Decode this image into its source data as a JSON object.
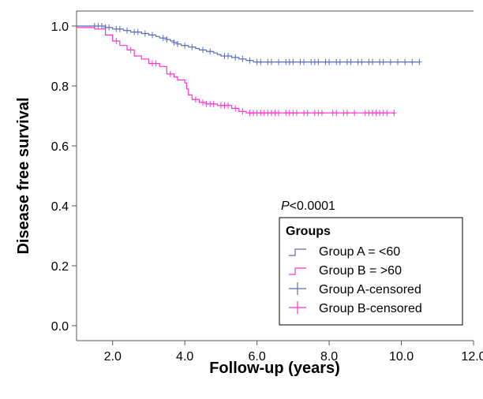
{
  "chart_data": {
    "type": "line",
    "subtype": "kaplan-meier",
    "xlabel": "Follow-up (years)",
    "ylabel": "Disease free survival",
    "xlim": [
      1.0,
      12.0
    ],
    "ylim": [
      -0.05,
      1.05
    ],
    "x_ticks": [
      "2.0",
      "4.0",
      "6.0",
      "8.0",
      "10.0",
      "12.0"
    ],
    "y_ticks": [
      "0.0",
      "0.2",
      "0.4",
      "0.6",
      "0.8",
      "1.0"
    ],
    "annotation": {
      "italic": "P",
      "text": "<0.0001"
    },
    "legend": {
      "title": "Groups",
      "position": "bottom-right",
      "entries": [
        "Group A = <60",
        "Group B = >60",
        "Group A-censored",
        "Group B-censored"
      ]
    },
    "colors": {
      "group_a": "#5b6fb5",
      "group_b": "#ff33cc"
    },
    "series": [
      {
        "name": "Group A = <60",
        "color": "#5b6fb5",
        "steps": [
          [
            1.0,
            1.0
          ],
          [
            1.8,
            0.995
          ],
          [
            2.0,
            0.99
          ],
          [
            2.3,
            0.985
          ],
          [
            2.5,
            0.98
          ],
          [
            2.8,
            0.975
          ],
          [
            3.0,
            0.97
          ],
          [
            3.2,
            0.965
          ],
          [
            3.3,
            0.96
          ],
          [
            3.5,
            0.955
          ],
          [
            3.6,
            0.95
          ],
          [
            3.7,
            0.945
          ],
          [
            3.8,
            0.94
          ],
          [
            3.9,
            0.935
          ],
          [
            4.1,
            0.93
          ],
          [
            4.3,
            0.925
          ],
          [
            4.4,
            0.92
          ],
          [
            4.6,
            0.915
          ],
          [
            4.8,
            0.91
          ],
          [
            4.9,
            0.905
          ],
          [
            5.0,
            0.9
          ],
          [
            5.3,
            0.895
          ],
          [
            5.5,
            0.89
          ],
          [
            5.7,
            0.885
          ],
          [
            5.9,
            0.88
          ],
          [
            10.5,
            0.88
          ]
        ],
        "censored": [
          1.5,
          1.6,
          1.7,
          1.8,
          1.9,
          2.1,
          2.2,
          2.4,
          2.6,
          2.7,
          2.9,
          3.1,
          3.4,
          3.5,
          3.7,
          3.8,
          4.0,
          4.2,
          4.5,
          4.7,
          5.1,
          5.2,
          5.4,
          5.6,
          5.8,
          6.0,
          6.1,
          6.3,
          6.4,
          6.6,
          6.8,
          6.9,
          7.0,
          7.2,
          7.3,
          7.5,
          7.6,
          7.7,
          7.9,
          8.0,
          8.2,
          8.3,
          8.5,
          8.6,
          8.8,
          8.9,
          9.1,
          9.2,
          9.4,
          9.5,
          9.7,
          9.9,
          10.1,
          10.3,
          10.5
        ]
      },
      {
        "name": "Group B = >60",
        "color": "#ff33cc",
        "steps": [
          [
            1.0,
            0.995
          ],
          [
            1.5,
            0.99
          ],
          [
            1.8,
            0.97
          ],
          [
            2.0,
            0.95
          ],
          [
            2.2,
            0.935
          ],
          [
            2.4,
            0.92
          ],
          [
            2.6,
            0.9
          ],
          [
            2.8,
            0.89
          ],
          [
            3.0,
            0.875
          ],
          [
            3.3,
            0.865
          ],
          [
            3.5,
            0.84
          ],
          [
            3.7,
            0.83
          ],
          [
            3.8,
            0.82
          ],
          [
            4.0,
            0.81
          ],
          [
            4.05,
            0.79
          ],
          [
            4.1,
            0.77
          ],
          [
            4.2,
            0.755
          ],
          [
            4.4,
            0.745
          ],
          [
            4.6,
            0.74
          ],
          [
            4.9,
            0.735
          ],
          [
            5.3,
            0.725
          ],
          [
            5.5,
            0.715
          ],
          [
            5.7,
            0.71
          ],
          [
            9.8,
            0.71
          ]
        ],
        "censored": [
          2.1,
          2.5,
          3.1,
          3.2,
          3.6,
          4.3,
          4.5,
          4.6,
          4.7,
          4.8,
          5.0,
          5.1,
          5.2,
          5.4,
          5.6,
          5.8,
          5.9,
          6.0,
          6.1,
          6.2,
          6.3,
          6.4,
          6.5,
          6.6,
          6.8,
          6.9,
          7.0,
          7.1,
          7.3,
          7.4,
          7.6,
          7.7,
          7.8,
          8.1,
          8.2,
          8.4,
          8.5,
          8.7,
          9.0,
          9.1,
          9.2,
          9.3,
          9.4,
          9.5,
          9.6,
          9.8
        ]
      }
    ]
  }
}
